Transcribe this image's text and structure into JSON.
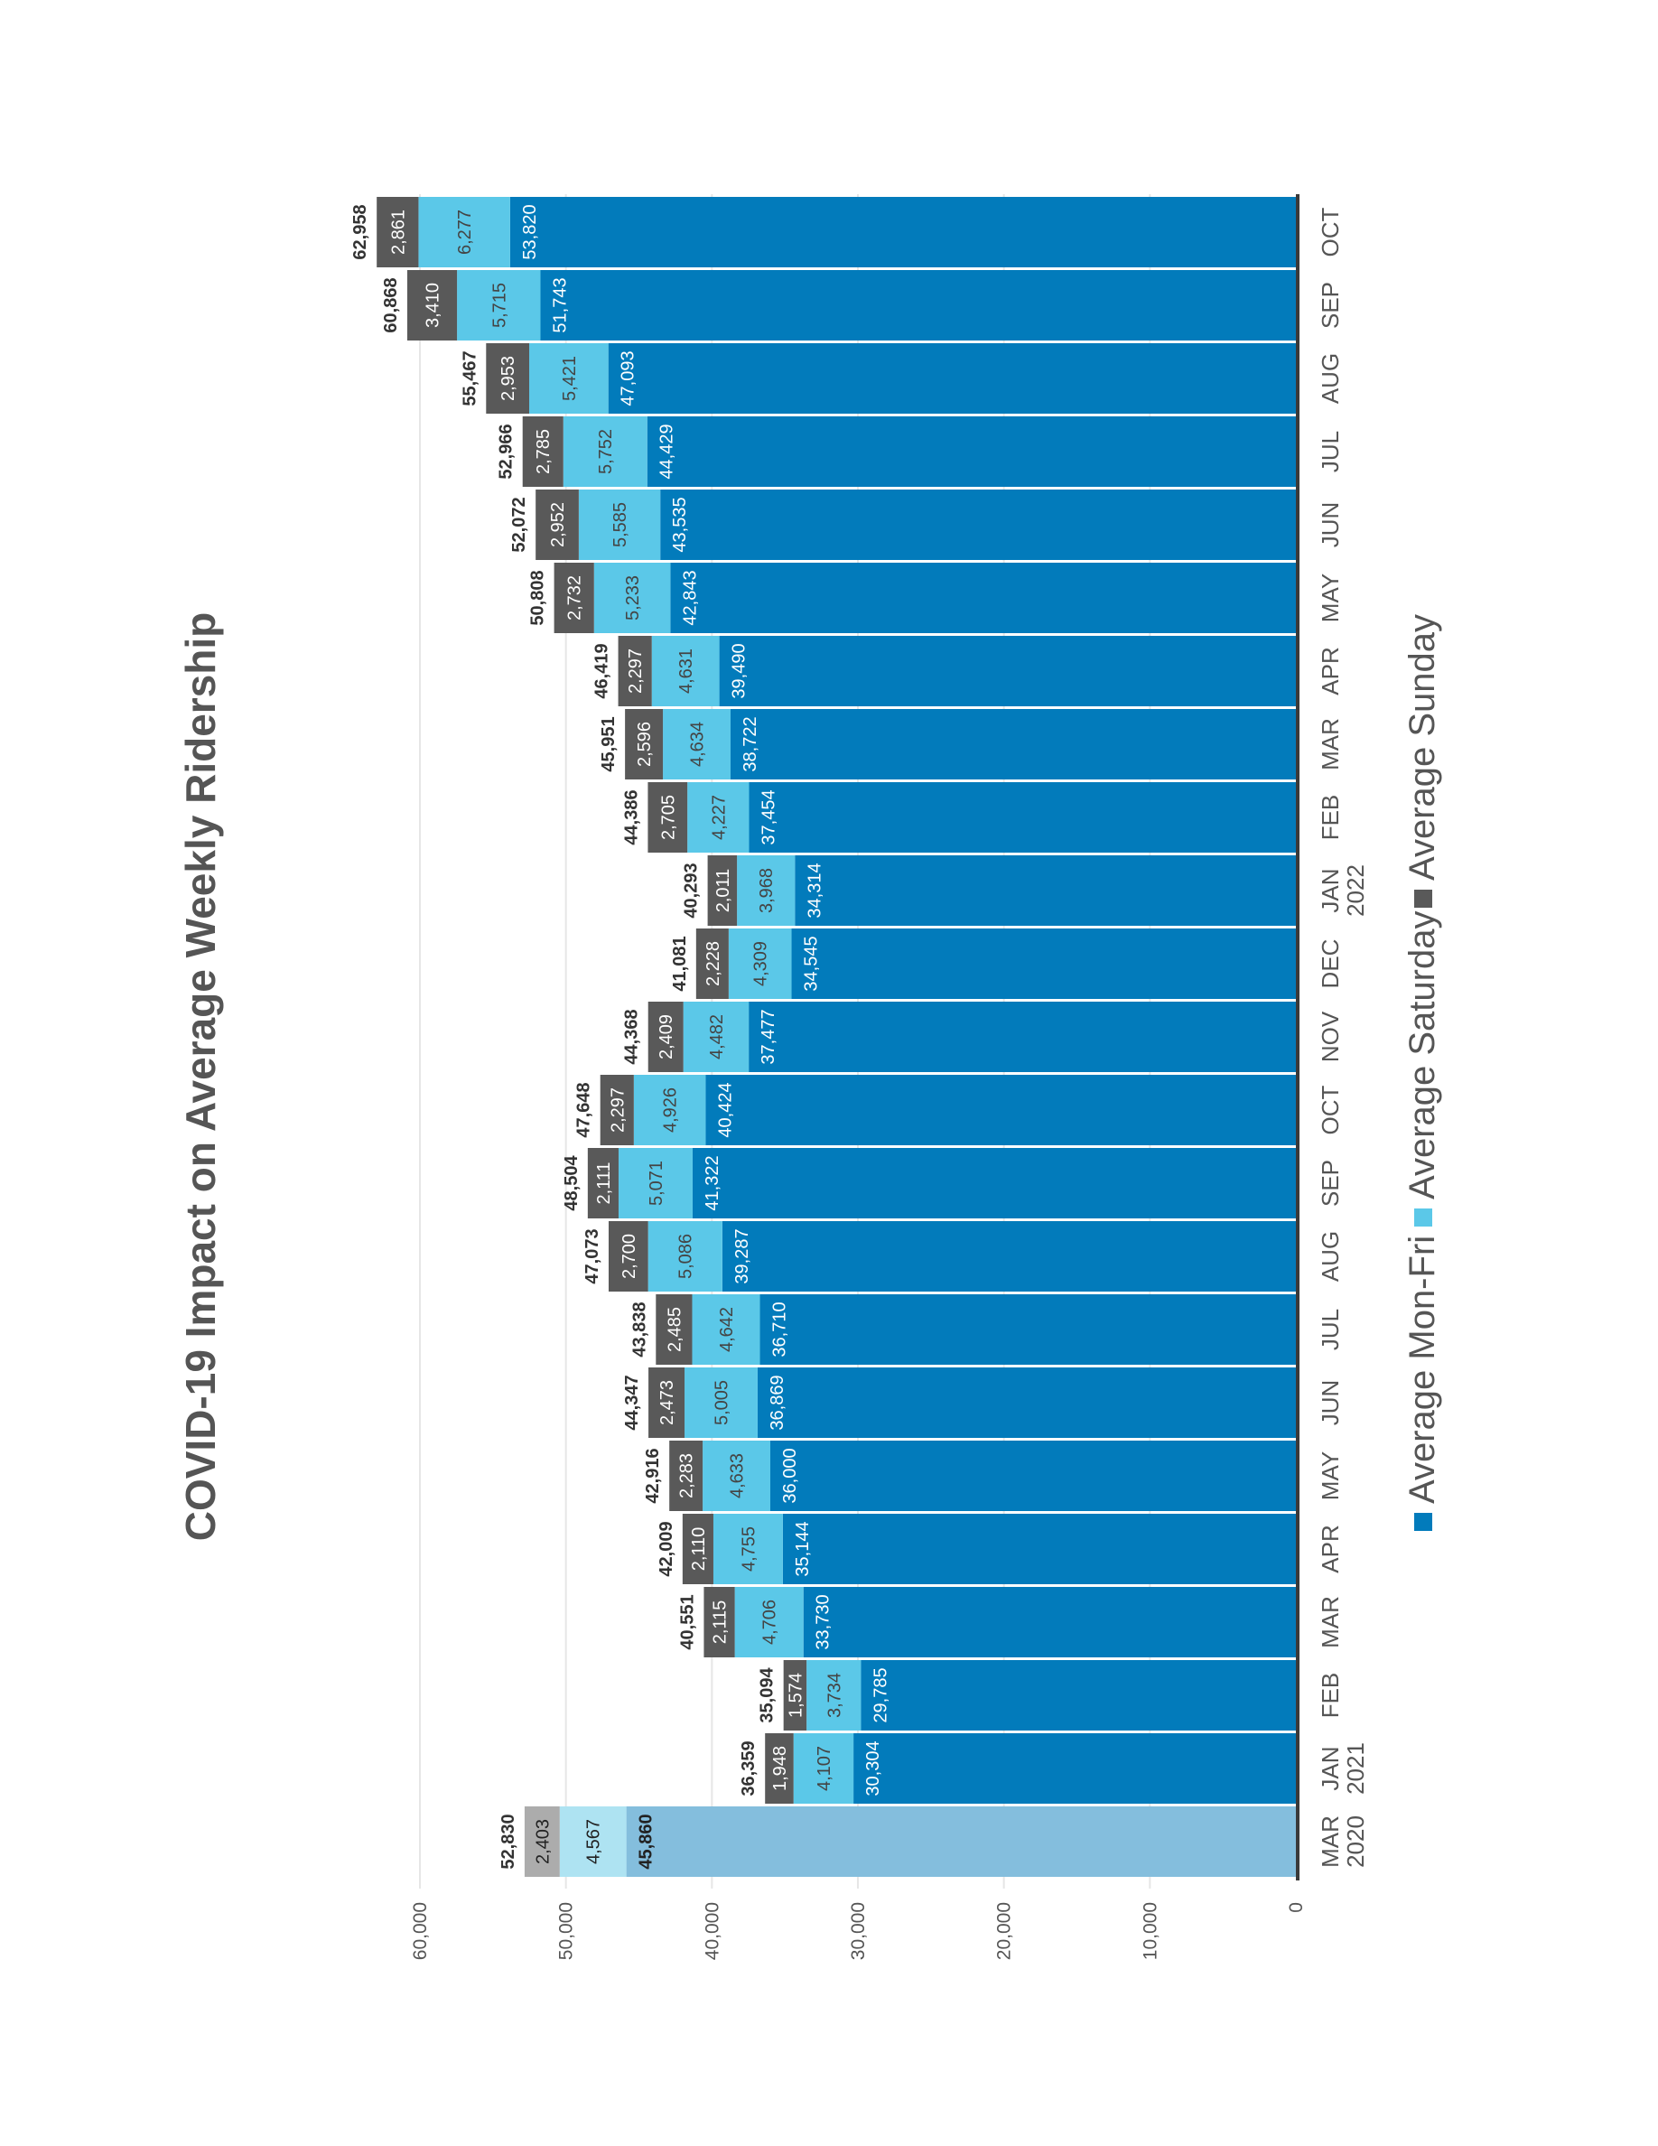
{
  "chart_data": {
    "type": "bar",
    "stacked": true,
    "orientation": "rotated 90 degrees counter-clockwise (vertical stacked columns)",
    "title": "COVID-19 Impact on Average Weekly Ridership",
    "xlabel": "",
    "ylabel": "",
    "ylim": [
      0,
      60000
    ],
    "yticks": [
      0,
      10000,
      20000,
      30000,
      40000,
      50000,
      60000
    ],
    "grid": true,
    "legend_position": "bottom",
    "categories": [
      {
        "month": "MAR",
        "year": "2020",
        "faded": true
      },
      {
        "month": "JAN",
        "year": "2021"
      },
      {
        "month": "FEB",
        "year": ""
      },
      {
        "month": "MAR",
        "year": ""
      },
      {
        "month": "APR",
        "year": ""
      },
      {
        "month": "MAY",
        "year": ""
      },
      {
        "month": "JUN",
        "year": ""
      },
      {
        "month": "JUL",
        "year": ""
      },
      {
        "month": "AUG",
        "year": ""
      },
      {
        "month": "SEP",
        "year": ""
      },
      {
        "month": "OCT",
        "year": ""
      },
      {
        "month": "NOV",
        "year": ""
      },
      {
        "month": "DEC",
        "year": ""
      },
      {
        "month": "JAN",
        "year": "2022"
      },
      {
        "month": "FEB",
        "year": ""
      },
      {
        "month": "MAR",
        "year": ""
      },
      {
        "month": "APR",
        "year": ""
      },
      {
        "month": "MAY",
        "year": ""
      },
      {
        "month": "JUN",
        "year": ""
      },
      {
        "month": "JUL",
        "year": ""
      },
      {
        "month": "AUG",
        "year": ""
      },
      {
        "month": "SEP",
        "year": ""
      },
      {
        "month": "OCT",
        "year": ""
      }
    ],
    "series": [
      {
        "name": "Average Mon-Fri",
        "color": "#027bbb",
        "faded_color": "#84bedd",
        "label_color": "#ffffff",
        "values": [
          45860,
          30304,
          29785,
          33730,
          35144,
          36000,
          36869,
          36710,
          39287,
          41322,
          40424,
          37477,
          34545,
          34314,
          37454,
          38722,
          39490,
          42843,
          43535,
          44429,
          47093,
          51743,
          53820
        ]
      },
      {
        "name": "Average Saturday",
        "color": "#5bc8e8",
        "faded_color": "#aee3f2",
        "label_color": "#444444",
        "values": [
          4567,
          4107,
          3734,
          4706,
          4755,
          4633,
          5005,
          4642,
          5086,
          5071,
          4926,
          4482,
          4309,
          3968,
          4227,
          4634,
          4631,
          5233,
          5585,
          5752,
          5421,
          5715,
          6277
        ]
      },
      {
        "name": "Average Sunday",
        "color": "#595959",
        "faded_color": "#acacac",
        "label_color": "#ffffff",
        "values": [
          2403,
          1948,
          1574,
          2115,
          2110,
          2283,
          2473,
          2485,
          2700,
          2111,
          2297,
          2409,
          2228,
          2011,
          2705,
          2596,
          2297,
          2732,
          2952,
          2785,
          2953,
          3410,
          2861
        ]
      }
    ],
    "totals": [
      52830,
      36359,
      35094,
      40551,
      42009,
      42916,
      44347,
      43838,
      47073,
      48504,
      47648,
      44368,
      41081,
      40293,
      44386,
      45951,
      46419,
      50808,
      52072,
      52966,
      55467,
      60868,
      62958
    ]
  }
}
